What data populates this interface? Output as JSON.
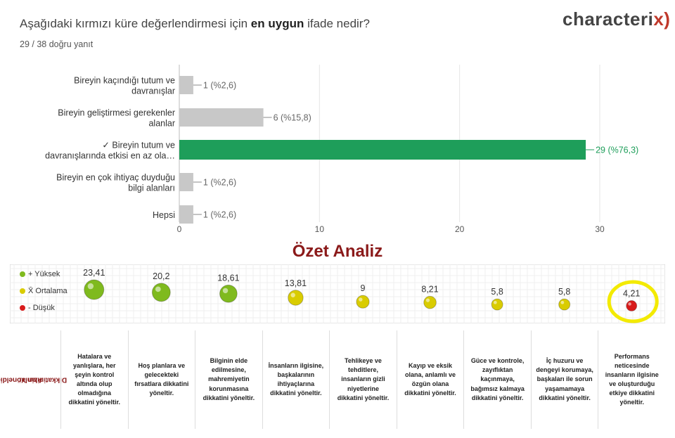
{
  "question": {
    "prefix": "Aşağıdaki kırmızı küre değerlendirmesi için ",
    "bold": "en uygun",
    "suffix": " ifade nedir?"
  },
  "score": "29 / 38 doğru yanıt",
  "logo": {
    "text": "characteri",
    "mark": "x",
    "close": ")"
  },
  "colors": {
    "correct": "#1e9e5a",
    "other": "#c8c8c8",
    "high": "#7fba1e",
    "mid": "#d9cc00",
    "low": "#d81b1b",
    "highlight": "#f3ea00",
    "title": "#8b1a1a"
  },
  "chart_data": [
    {
      "type": "bar",
      "orientation": "horizontal",
      "categories": [
        [
          "Bireyin kaçındığı tutum ve",
          "davranışlar"
        ],
        [
          "Bireyin geliştirmesi gerekenler",
          "alanlar"
        ],
        [
          "✓ Bireyin tutum ve",
          "davranışlarında etkisi en az ola…"
        ],
        [
          "Bireyin en çok ihtiyaç duyduğu",
          "bilgi alanları"
        ],
        [
          "Hepsi"
        ]
      ],
      "values": [
        1,
        6,
        29,
        1,
        1
      ],
      "data_labels": [
        "1 (%2,6)",
        "6 (%15,8)",
        "29 (%76,3)",
        "1 (%2,6)",
        "1 (%2,6)"
      ],
      "correct_index": 2,
      "xlim": [
        0,
        30
      ],
      "xticks": [
        "0",
        "10",
        "20",
        "30"
      ]
    },
    {
      "type": "scatter",
      "title": "Özet Analiz",
      "legend": [
        {
          "label": "+ Yüksek",
          "color": "#7fba1e"
        },
        {
          "label": "X̄ Ortalama",
          "color": "#d9cc00"
        },
        {
          "label": "- Düşük",
          "color": "#d81b1b"
        }
      ],
      "values": [
        23.41,
        20.2,
        18.61,
        13.81,
        9,
        8.21,
        5.8,
        5.8,
        4.21
      ],
      "value_labels": [
        "23,41",
        "20,2",
        "18,61",
        "13,81",
        "9",
        "8,21",
        "5,8",
        "5,8",
        "4,21"
      ],
      "levels": [
        "high",
        "high",
        "high",
        "mid",
        "mid",
        "mid",
        "mid",
        "mid",
        "low"
      ],
      "highlighted_index": 8
    }
  ],
  "focus_label": [
    "Dikkatinizin Yöneldiği",
    "Alanlar"
  ],
  "descriptions": [
    "Hatalara ve yanlışlara, her şeyin kontrol altında olup olmadığına dikkatini yöneltir.",
    "Hoş planlara ve gelecekteki fırsatlara dikkatini yöneltir.",
    "Bilginin elde edilmesine, mahremiyetin korunmasına dikkatini yöneltir.",
    "İnsanların ilgisine, başkalarının ihtiyaçlarına dikkatini yöneltir.",
    "Tehlikeye ve tehditlere, insanların gizli niyetlerine dikkatini yöneltir.",
    "Kayıp ve eksik olana, anlamlı ve özgün olana dikkatini yöneltir.",
    "Güce ve kontrole, zayıflıktan kaçınmaya, bağımsız kalmaya dikkatini yöneltir.",
    "İç huzuru ve dengeyi korumaya, başkaları ile sorun yaşamamaya dikkatini yöneltir.",
    "Performans neticesinde insanların ilgisine ve oluşturduğu etkiye dikkatini yöneltir."
  ]
}
